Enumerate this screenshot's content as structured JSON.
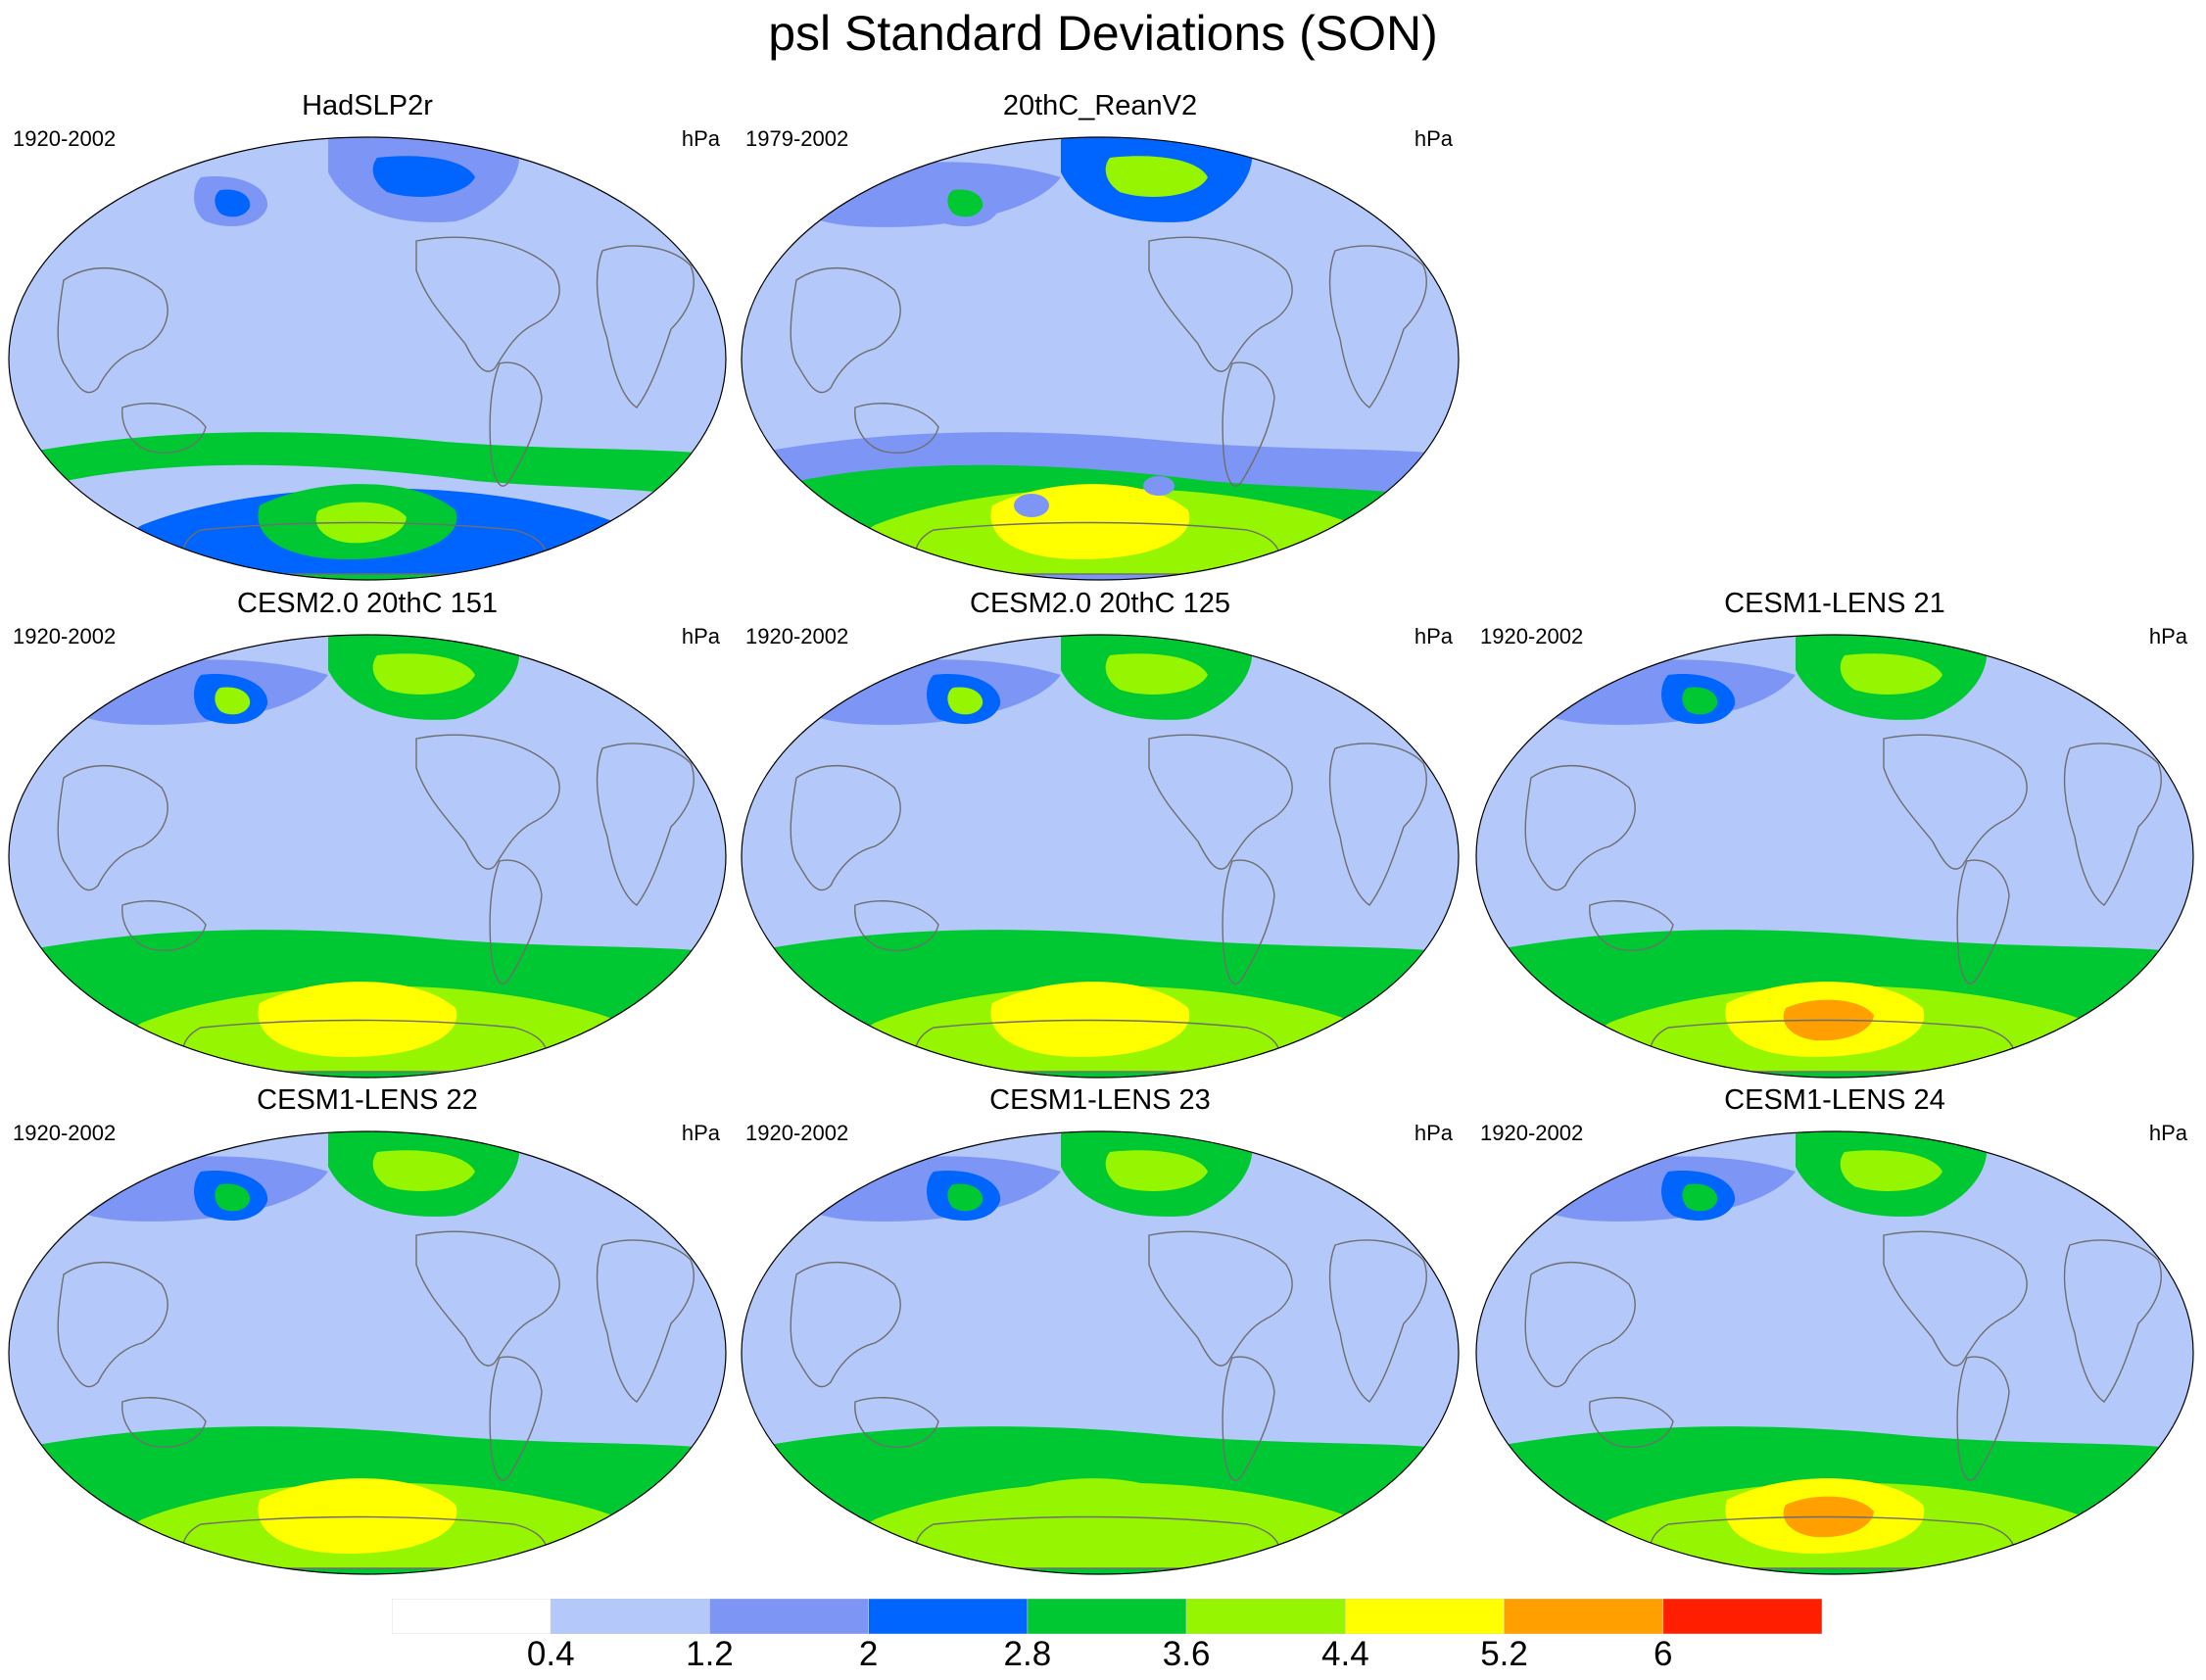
{
  "title": "psl Standard Deviations (SON)",
  "panels": [
    {
      "id": "p1",
      "title": "HadSLP2r",
      "years": "1920-2002",
      "units": "hPa",
      "levels": [
        1,
        2,
        3,
        1,
        2,
        3,
        4,
        1,
        3,
        4,
        5
      ],
      "anomalies": "none"
    },
    {
      "id": "p2",
      "title": "20thC_ReanV2",
      "years": "1979-2002",
      "units": "hPa",
      "levels": [
        1,
        3,
        5,
        2,
        2,
        4,
        2,
        4,
        5,
        6,
        6
      ],
      "anomalies": "spots"
    },
    {
      "id": "p4",
      "title": "CESM2.0 20thC 151",
      "years": "1920-2002",
      "units": "hPa",
      "levels": [
        1,
        4,
        5,
        2,
        3,
        5,
        4,
        4,
        5,
        6,
        6
      ],
      "anomalies": "none"
    },
    {
      "id": "p5",
      "title": "CESM2.0 20thC 125",
      "years": "1920-2002",
      "units": "hPa",
      "levels": [
        1,
        4,
        5,
        2,
        3,
        5,
        4,
        4,
        5,
        6,
        6
      ],
      "anomalies": "none"
    },
    {
      "id": "p6",
      "title": "CESM1-LENS 21",
      "years": "1920-2002",
      "units": "hPa",
      "levels": [
        1,
        4,
        5,
        2,
        3,
        4,
        4,
        4,
        5,
        6,
        7
      ],
      "anomalies": "none"
    },
    {
      "id": "p7",
      "title": "CESM1-LENS 22",
      "years": "1920-2002",
      "units": "hPa",
      "levels": [
        1,
        4,
        5,
        2,
        3,
        4,
        4,
        4,
        5,
        6,
        6
      ],
      "anomalies": "none"
    },
    {
      "id": "p8",
      "title": "CESM1-LENS 23",
      "years": "1920-2002",
      "units": "hPa",
      "levels": [
        1,
        4,
        5,
        2,
        3,
        4,
        4,
        4,
        5,
        5,
        5
      ],
      "anomalies": "none"
    },
    {
      "id": "p9",
      "title": "CESM1-LENS 24",
      "years": "1920-2002",
      "units": "hPa",
      "levels": [
        1,
        4,
        5,
        2,
        3,
        4,
        4,
        4,
        5,
        6,
        7
      ],
      "anomalies": "none"
    }
  ],
  "colorbar": {
    "colors": [
      "#ffffff",
      "#b4c8fa",
      "#7d96f5",
      "#0064ff",
      "#00c832",
      "#96f500",
      "#ffff00",
      "#ffa000",
      "#ff1e00"
    ],
    "labels": [
      "0.4",
      "1.2",
      "2",
      "2.8",
      "3.6",
      "4.4",
      "5.2",
      "6"
    ]
  }
}
